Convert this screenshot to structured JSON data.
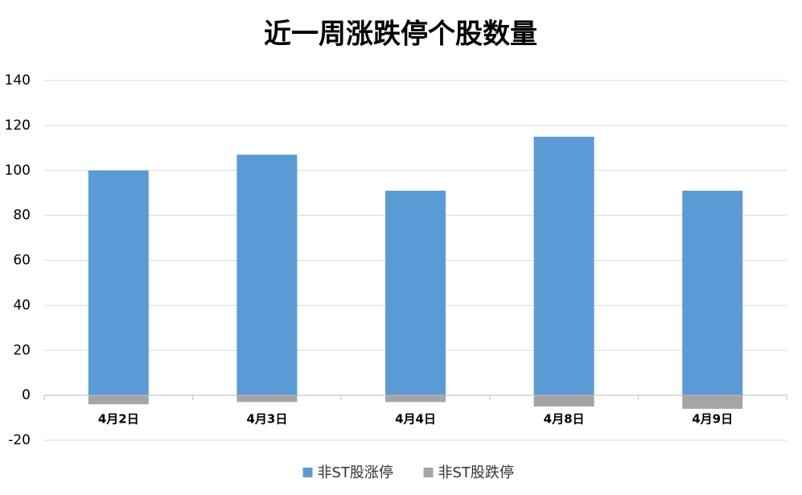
{
  "chart_data": {
    "type": "bar",
    "title": "近一周涨跌停个股数量",
    "categories": [
      "4月2日",
      "4月3日",
      "4月4日",
      "4月8日",
      "4月9日"
    ],
    "series": [
      {
        "name": "非ST股涨停",
        "color": "#5b9bd5",
        "values": [
          100,
          107,
          91,
          115,
          91
        ]
      },
      {
        "name": "非ST股跌停",
        "color": "#a5a5a5",
        "values": [
          -4,
          -3,
          -3,
          -5,
          -6
        ]
      }
    ],
    "ylim": [
      -20,
      140
    ],
    "yticks": [
      -20,
      0,
      20,
      40,
      60,
      80,
      100,
      120,
      140
    ],
    "grid": true,
    "stacked": true,
    "legend": "bottom"
  }
}
